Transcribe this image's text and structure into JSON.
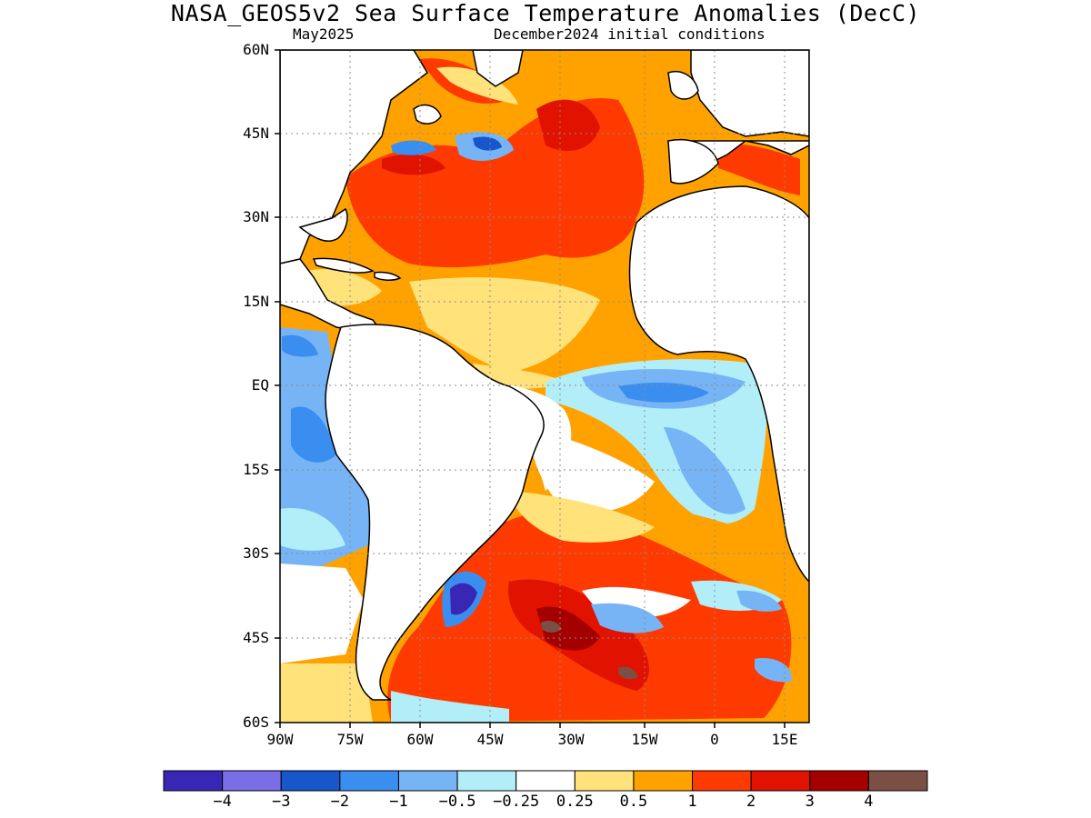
{
  "title": "NASA_GEOS5v2 Sea Surface Temperature Anomalies (DecC)",
  "target_month": "May2025",
  "initial_conditions": "December2024 initial conditions",
  "lat_labels": [
    "60N",
    "45N",
    "30N",
    "15N",
    "EQ",
    "15S",
    "30S",
    "45S",
    "60S"
  ],
  "lon_labels": [
    "90W",
    "75W",
    "60W",
    "45W",
    "30W",
    "15W",
    "0",
    "15E"
  ],
  "colorbar": {
    "colors": [
      "#3a26b5",
      "#7a6de8",
      "#1756cb",
      "#3a8ef0",
      "#76b4f5",
      "#b2eef8",
      "#ffffff",
      "#ffe27a",
      "#ffa200",
      "#ff3a00",
      "#e21200",
      "#a50000",
      "#7a5044"
    ],
    "labels": [
      "−4",
      "−3",
      "−2",
      "−1",
      "−0.5",
      "−0.25",
      "0.25",
      "0.5",
      "1",
      "2",
      "3",
      "4"
    ]
  },
  "colors": {
    "land": "#ffffff",
    "coast": "#000000",
    "grid": "#8c8c8c"
  }
}
